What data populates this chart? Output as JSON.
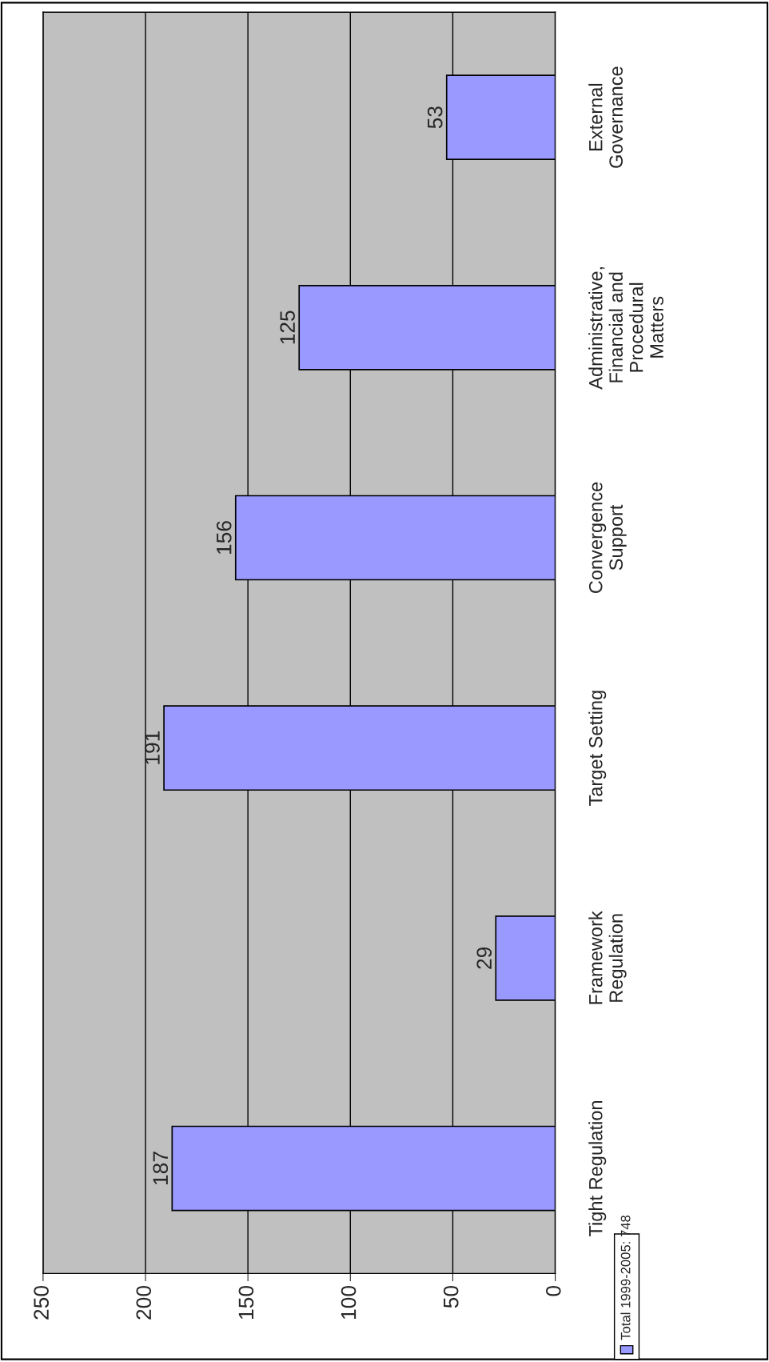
{
  "chart_data": {
    "type": "bar",
    "orientation": "horizontal",
    "categories": [
      "External\nGovernance",
      "Administrative,\nFinancial and\nProcedural\nMatters",
      "Convergence\nSupport",
      "Target Setting",
      "Framework\nRegulation",
      "Tight Regulation"
    ],
    "series": [
      {
        "name": "Total 1999-2005: 748",
        "color": "#9999ff",
        "values": [
          53,
          125,
          156,
          191,
          29,
          187
        ]
      }
    ],
    "xlim": [
      250,
      0
    ],
    "xticks": [
      0,
      50,
      100,
      150,
      200,
      250
    ],
    "grid": "x",
    "legend": "bottom",
    "data_labels": true
  }
}
